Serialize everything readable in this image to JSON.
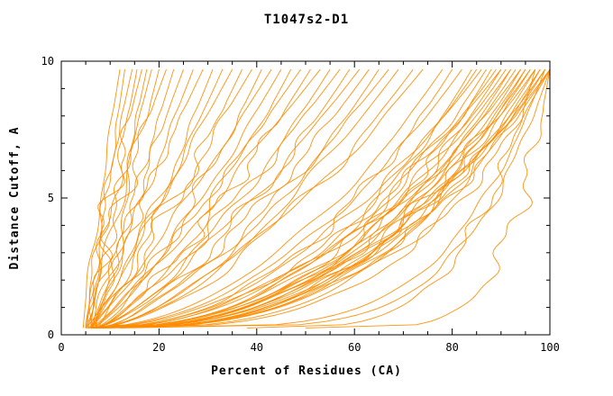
{
  "chart_data": {
    "type": "line",
    "title": "T1047s2-D1",
    "xlabel": "Percent of Residues (CA)",
    "ylabel": "Distance Cutoff, A",
    "xlim": [
      0,
      100
    ],
    "ylim": [
      0,
      10
    ],
    "x_ticks": [
      0,
      20,
      40,
      60,
      80,
      100
    ],
    "y_ticks": [
      0,
      5,
      10
    ],
    "x_minor_step": 5,
    "y_minor_step": 1,
    "grid": false,
    "legend": "none",
    "series_color": "#ff8c00",
    "curve_encoding": "each curve = [x_percent_at_bottom, x_percent_at_top, shape_exponent]; x(t) = x0 + (x1-x0)*t^shape, t in [0,1] maps cutoff 0.25..9.7 A",
    "curves": [
      [
        4.5,
        12,
        1.15
      ],
      [
        5,
        13,
        0.95
      ],
      [
        5,
        14.5,
        1.25
      ],
      [
        5.5,
        15.5,
        1.0
      ],
      [
        6,
        16.5,
        1.3
      ],
      [
        5,
        17.5,
        0.9
      ],
      [
        6,
        18.5,
        1.1
      ],
      [
        6.5,
        20,
        1.0
      ],
      [
        5.5,
        21.5,
        1.25
      ],
      [
        6,
        23,
        0.95
      ],
      [
        7,
        25,
        1.1
      ],
      [
        6.5,
        27,
        1.0
      ],
      [
        7,
        29,
        1.15
      ],
      [
        7.5,
        31,
        0.9
      ],
      [
        5,
        33,
        0.85
      ],
      [
        6,
        35,
        1.0
      ],
      [
        5.5,
        37,
        0.8
      ],
      [
        6,
        39,
        0.95
      ],
      [
        7,
        41,
        0.75
      ],
      [
        6,
        43,
        0.9
      ],
      [
        6.5,
        45,
        0.8
      ],
      [
        7,
        47,
        0.7
      ],
      [
        6,
        49,
        0.85
      ],
      [
        7,
        51,
        0.75
      ],
      [
        6.5,
        53,
        0.9
      ],
      [
        7,
        55,
        0.7
      ],
      [
        7.5,
        57,
        0.8
      ],
      [
        6,
        59,
        0.65
      ],
      [
        7,
        61,
        0.75
      ],
      [
        8,
        63,
        0.7
      ],
      [
        7,
        65,
        0.6
      ],
      [
        7.5,
        67,
        0.7
      ],
      [
        8,
        69,
        0.65
      ],
      [
        6.5,
        72,
        0.6
      ],
      [
        7,
        74,
        0.65
      ],
      [
        5,
        78,
        0.5
      ],
      [
        6,
        80,
        0.45
      ],
      [
        5.5,
        82,
        0.5
      ],
      [
        6,
        84,
        0.4
      ],
      [
        7,
        85,
        0.45
      ],
      [
        6,
        86,
        0.5
      ],
      [
        6.5,
        87,
        0.42
      ],
      [
        7,
        88,
        0.38
      ],
      [
        6,
        89,
        0.45
      ],
      [
        7,
        90,
        0.4
      ],
      [
        7.5,
        90,
        0.5
      ],
      [
        6,
        91,
        0.42
      ],
      [
        7,
        92,
        0.38
      ],
      [
        8,
        92,
        0.45
      ],
      [
        6.5,
        93,
        0.4
      ],
      [
        7,
        94,
        0.36
      ],
      [
        7.5,
        94,
        0.44
      ],
      [
        8,
        95,
        0.4
      ],
      [
        6,
        95,
        0.35
      ],
      [
        7,
        96,
        0.42
      ],
      [
        8,
        96,
        0.38
      ],
      [
        7,
        97,
        0.35
      ],
      [
        7.5,
        97,
        0.42
      ],
      [
        8,
        98,
        0.38
      ],
      [
        8.5,
        98,
        0.33
      ],
      [
        7,
        99,
        0.4
      ],
      [
        8,
        99,
        0.36
      ],
      [
        9,
        100,
        0.32
      ],
      [
        8,
        100,
        0.42
      ],
      [
        9,
        100,
        0.38
      ],
      [
        10,
        99,
        0.22
      ],
      [
        12,
        100,
        0.2
      ],
      [
        38,
        97,
        0.25
      ],
      [
        50,
        100,
        0.18
      ]
    ]
  }
}
